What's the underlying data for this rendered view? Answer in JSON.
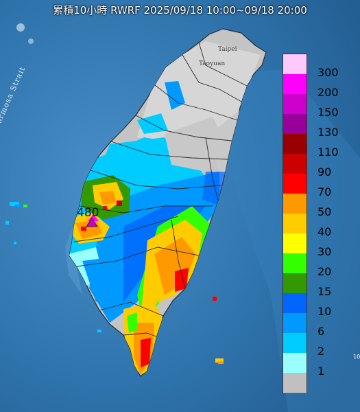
{
  "title": "累積10小時 RWRF 2025/09/18 10:00~09/18 20:00",
  "places": {
    "taipei": "Taipei",
    "taoyuan": "Taoyuan",
    "strait": "Formosa Strait",
    "edge": "10"
  },
  "peak_label": "480",
  "legend": {
    "units_hint": "",
    "steps": [
      {
        "label": "300",
        "color": "#ffc8ff"
      },
      {
        "label": "200",
        "color": "#ff00ff"
      },
      {
        "label": "150",
        "color": "#cc00cc"
      },
      {
        "label": "130",
        "color": "#990099"
      },
      {
        "label": "110",
        "color": "#990000"
      },
      {
        "label": "90",
        "color": "#cc0000"
      },
      {
        "label": "70",
        "color": "#ff0000"
      },
      {
        "label": "50",
        "color": "#ff9900"
      },
      {
        "label": "40",
        "color": "#ffcc00"
      },
      {
        "label": "30",
        "color": "#ffff00"
      },
      {
        "label": "20",
        "color": "#33ff00"
      },
      {
        "label": "15",
        "color": "#339900"
      },
      {
        "label": "10",
        "color": "#0066ff"
      },
      {
        "label": "6",
        "color": "#0099ff"
      },
      {
        "label": "2",
        "color": "#00ccff"
      },
      {
        "label": "1",
        "color": "#99ffff"
      },
      {
        "label": "",
        "color": "#c0c0c0"
      }
    ]
  }
}
